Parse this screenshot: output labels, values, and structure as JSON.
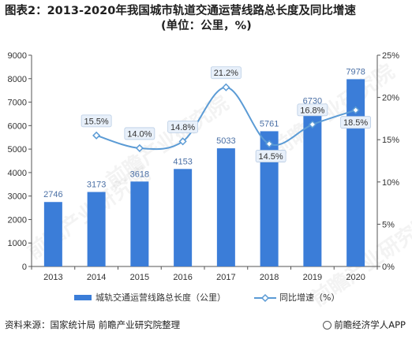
{
  "title_line1": "图表2：2013-2020年我国城市轨道交通运营线路总长度及同比增速",
  "title_line2": "(单位：公里，%)",
  "source": "资料来源：国家统计局 前瞻产业研究院整理",
  "brand": "前瞻经济学人APP",
  "watermark": "前瞻产业研究院",
  "colors": {
    "bar": "#3b7dd8",
    "line": "#5b9bd5",
    "axis": "#555555"
  },
  "chart_data": {
    "type": "bar",
    "categories": [
      "2013",
      "2014",
      "2015",
      "2016",
      "2017",
      "2018",
      "2019",
      "2020"
    ],
    "series": [
      {
        "name": "城轨交通运营线路总长度（公里）",
        "type": "bar",
        "axis": "left",
        "values": [
          2746,
          3173,
          3618,
          4153,
          5033,
          5761,
          6730,
          7978
        ]
      },
      {
        "name": "同比增速（%）",
        "type": "line",
        "axis": "right",
        "x": [
          "2014",
          "2015",
          "2016",
          "2017",
          "2018",
          "2019",
          "2020"
        ],
        "values": [
          15.5,
          14.0,
          14.8,
          21.2,
          14.5,
          16.8,
          18.5
        ],
        "labels": [
          "15.5%",
          "14.0%",
          "14.8%",
          "21.2%",
          "14.5%",
          "16.8%",
          "18.5%"
        ]
      }
    ],
    "yleft": {
      "lim": [
        0,
        9000
      ],
      "ticks": [
        "0",
        "1000",
        "2000",
        "3000",
        "4000",
        "5000",
        "6000",
        "7000",
        "8000",
        "9000"
      ]
    },
    "yright": {
      "lim": [
        0,
        25
      ],
      "ticks": [
        "0%",
        "5%",
        "10%",
        "15%",
        "20%",
        "25%"
      ]
    },
    "legend": "bottom"
  }
}
